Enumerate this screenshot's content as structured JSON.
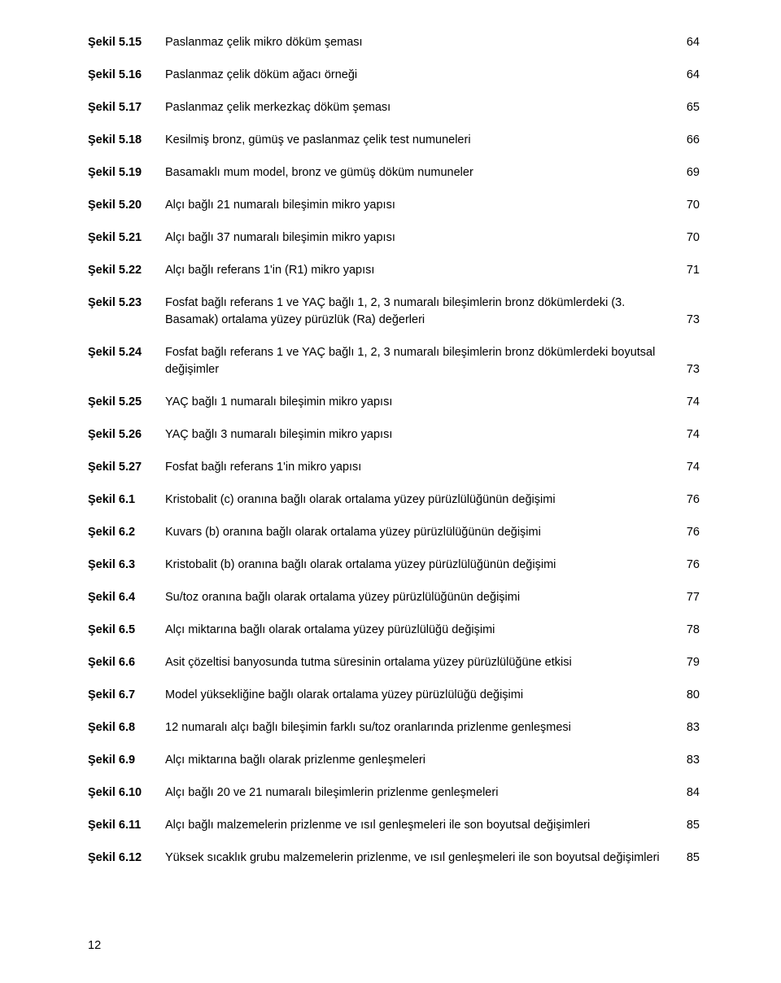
{
  "pageNumber": "12",
  "style": {
    "textColor": "#000000",
    "backgroundColor": "#ffffff",
    "fontFamily": "Verdana, Geneva, sans-serif",
    "bodyFontSize": 14.5,
    "labelWeight": "700"
  },
  "entries": [
    {
      "label": "Şekil 5.15",
      "desc": "Paslanmaz çelik mikro döküm şeması",
      "page": "64"
    },
    {
      "label": "Şekil 5.16",
      "desc": "Paslanmaz çelik döküm ağacı örneği",
      "page": "64"
    },
    {
      "label": "Şekil 5.17",
      "desc": "Paslanmaz çelik merkezkaç döküm şeması",
      "page": "65"
    },
    {
      "label": "Şekil 5.18",
      "desc": "Kesilmiş bronz, gümüş ve paslanmaz çelik test numuneleri",
      "page": "66"
    },
    {
      "label": "Şekil 5.19",
      "desc": "Basamaklı mum model, bronz ve gümüş döküm numuneler",
      "page": "69"
    },
    {
      "label": "Şekil 5.20",
      "desc": "Alçı bağlı 21 numaralı bileşimin mikro yapısı",
      "page": "70"
    },
    {
      "label": "Şekil 5.21",
      "desc": "Alçı bağlı 37 numaralı bileşimin mikro yapısı",
      "page": "70"
    },
    {
      "label": "Şekil 5.22",
      "desc": "Alçı bağlı referans 1'in (R1) mikro yapısı",
      "page": "71"
    },
    {
      "label": "Şekil 5.23",
      "desc": "Fosfat bağlı referans 1 ve YAÇ bağlı 1, 2, 3 numaralı bileşimlerin bronz dökümlerdeki (3. Basamak) ortalama yüzey pürüzlük (Ra) değerleri",
      "page": "73"
    },
    {
      "label": "Şekil 5.24",
      "desc": "Fosfat bağlı referans 1 ve YAÇ bağlı 1, 2, 3 numaralı bileşimlerin bronz dökümlerdeki boyutsal değişimler",
      "page": "73"
    },
    {
      "label": "Şekil 5.25",
      "desc": "YAÇ bağlı 1 numaralı bileşimin mikro yapısı",
      "page": "74"
    },
    {
      "label": "Şekil 5.26",
      "desc": "YAÇ bağlı 3 numaralı bileşimin mikro yapısı",
      "page": "74"
    },
    {
      "label": "Şekil 5.27",
      "desc": "Fosfat bağlı referans 1'in mikro yapısı",
      "page": "74"
    },
    {
      "label": "Şekil 6.1",
      "desc": "Kristobalit (c) oranına bağlı olarak ortalama yüzey pürüzlülüğünün değişimi",
      "page": "76"
    },
    {
      "label": "Şekil 6.2",
      "desc": "Kuvars (b) oranına bağlı olarak ortalama yüzey pürüzlülüğünün değişimi",
      "page": "76"
    },
    {
      "label": "Şekil 6.3",
      "desc": "Kristobalit (b) oranına bağlı olarak ortalama yüzey pürüzlülüğünün değişimi",
      "page": "76"
    },
    {
      "label": "Şekil 6.4",
      "desc": "Su/toz oranına bağlı olarak ortalama yüzey pürüzlülüğünün değişimi",
      "page": "77"
    },
    {
      "label": "Şekil 6.5",
      "desc": "Alçı miktarına bağlı olarak ortalama yüzey pürüzlülüğü değişimi",
      "page": "78"
    },
    {
      "label": "Şekil 6.6",
      "desc": "Asit çözeltisi banyosunda tutma süresinin ortalama yüzey pürüzlülüğüne etkisi",
      "page": "79"
    },
    {
      "label": "Şekil 6.7",
      "desc": "Model yüksekliğine bağlı olarak ortalama yüzey pürüzlülüğü değişimi",
      "page": "80"
    },
    {
      "label": "Şekil 6.8",
      "desc": "12 numaralı alçı bağlı bileşimin farklı su/toz oranlarında prizlenme genleşmesi",
      "page": "83"
    },
    {
      "label": "Şekil 6.9",
      "desc": "Alçı miktarına bağlı olarak prizlenme genleşmeleri",
      "page": "83"
    },
    {
      "label": "Şekil 6.10",
      "desc": "Alçı bağlı 20 ve 21 numaralı bileşimlerin prizlenme genleşmeleri",
      "page": "84"
    },
    {
      "label": "Şekil 6.11",
      "desc": "Alçı bağlı malzemelerin prizlenme ve ısıl genleşmeleri ile son boyutsal değişimleri",
      "page": "85"
    },
    {
      "label": "Şekil 6.12",
      "desc": "Yüksek sıcaklık grubu malzemelerin prizlenme, ve ısıl genleşmeleri ile son boyutsal değişimleri",
      "page": "85"
    }
  ]
}
